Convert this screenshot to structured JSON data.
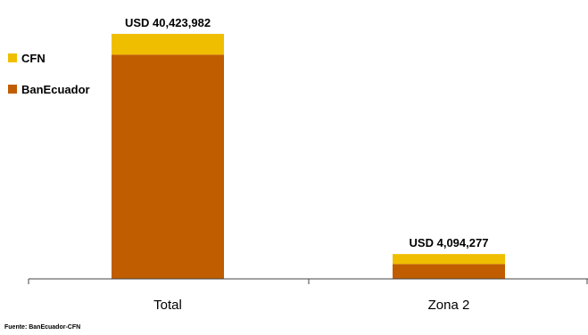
{
  "chart_data": {
    "type": "bar",
    "stacked": true,
    "categories": [
      "Total",
      "Zona 2"
    ],
    "series": [
      {
        "name": "BanEcuador",
        "color": "#C05D00",
        "values": [
          37000000,
          2450000
        ]
      },
      {
        "name": "CFN",
        "color": "#F0BE00",
        "values": [
          3423982,
          1644277
        ]
      }
    ],
    "total_labels": [
      "USD 40,423,982",
      "USD 4,094,277"
    ],
    "ylim": [
      0,
      42000000
    ],
    "grid": false,
    "legend_position": "top-left",
    "source": "Fuente: BanEcuador-CFN"
  }
}
